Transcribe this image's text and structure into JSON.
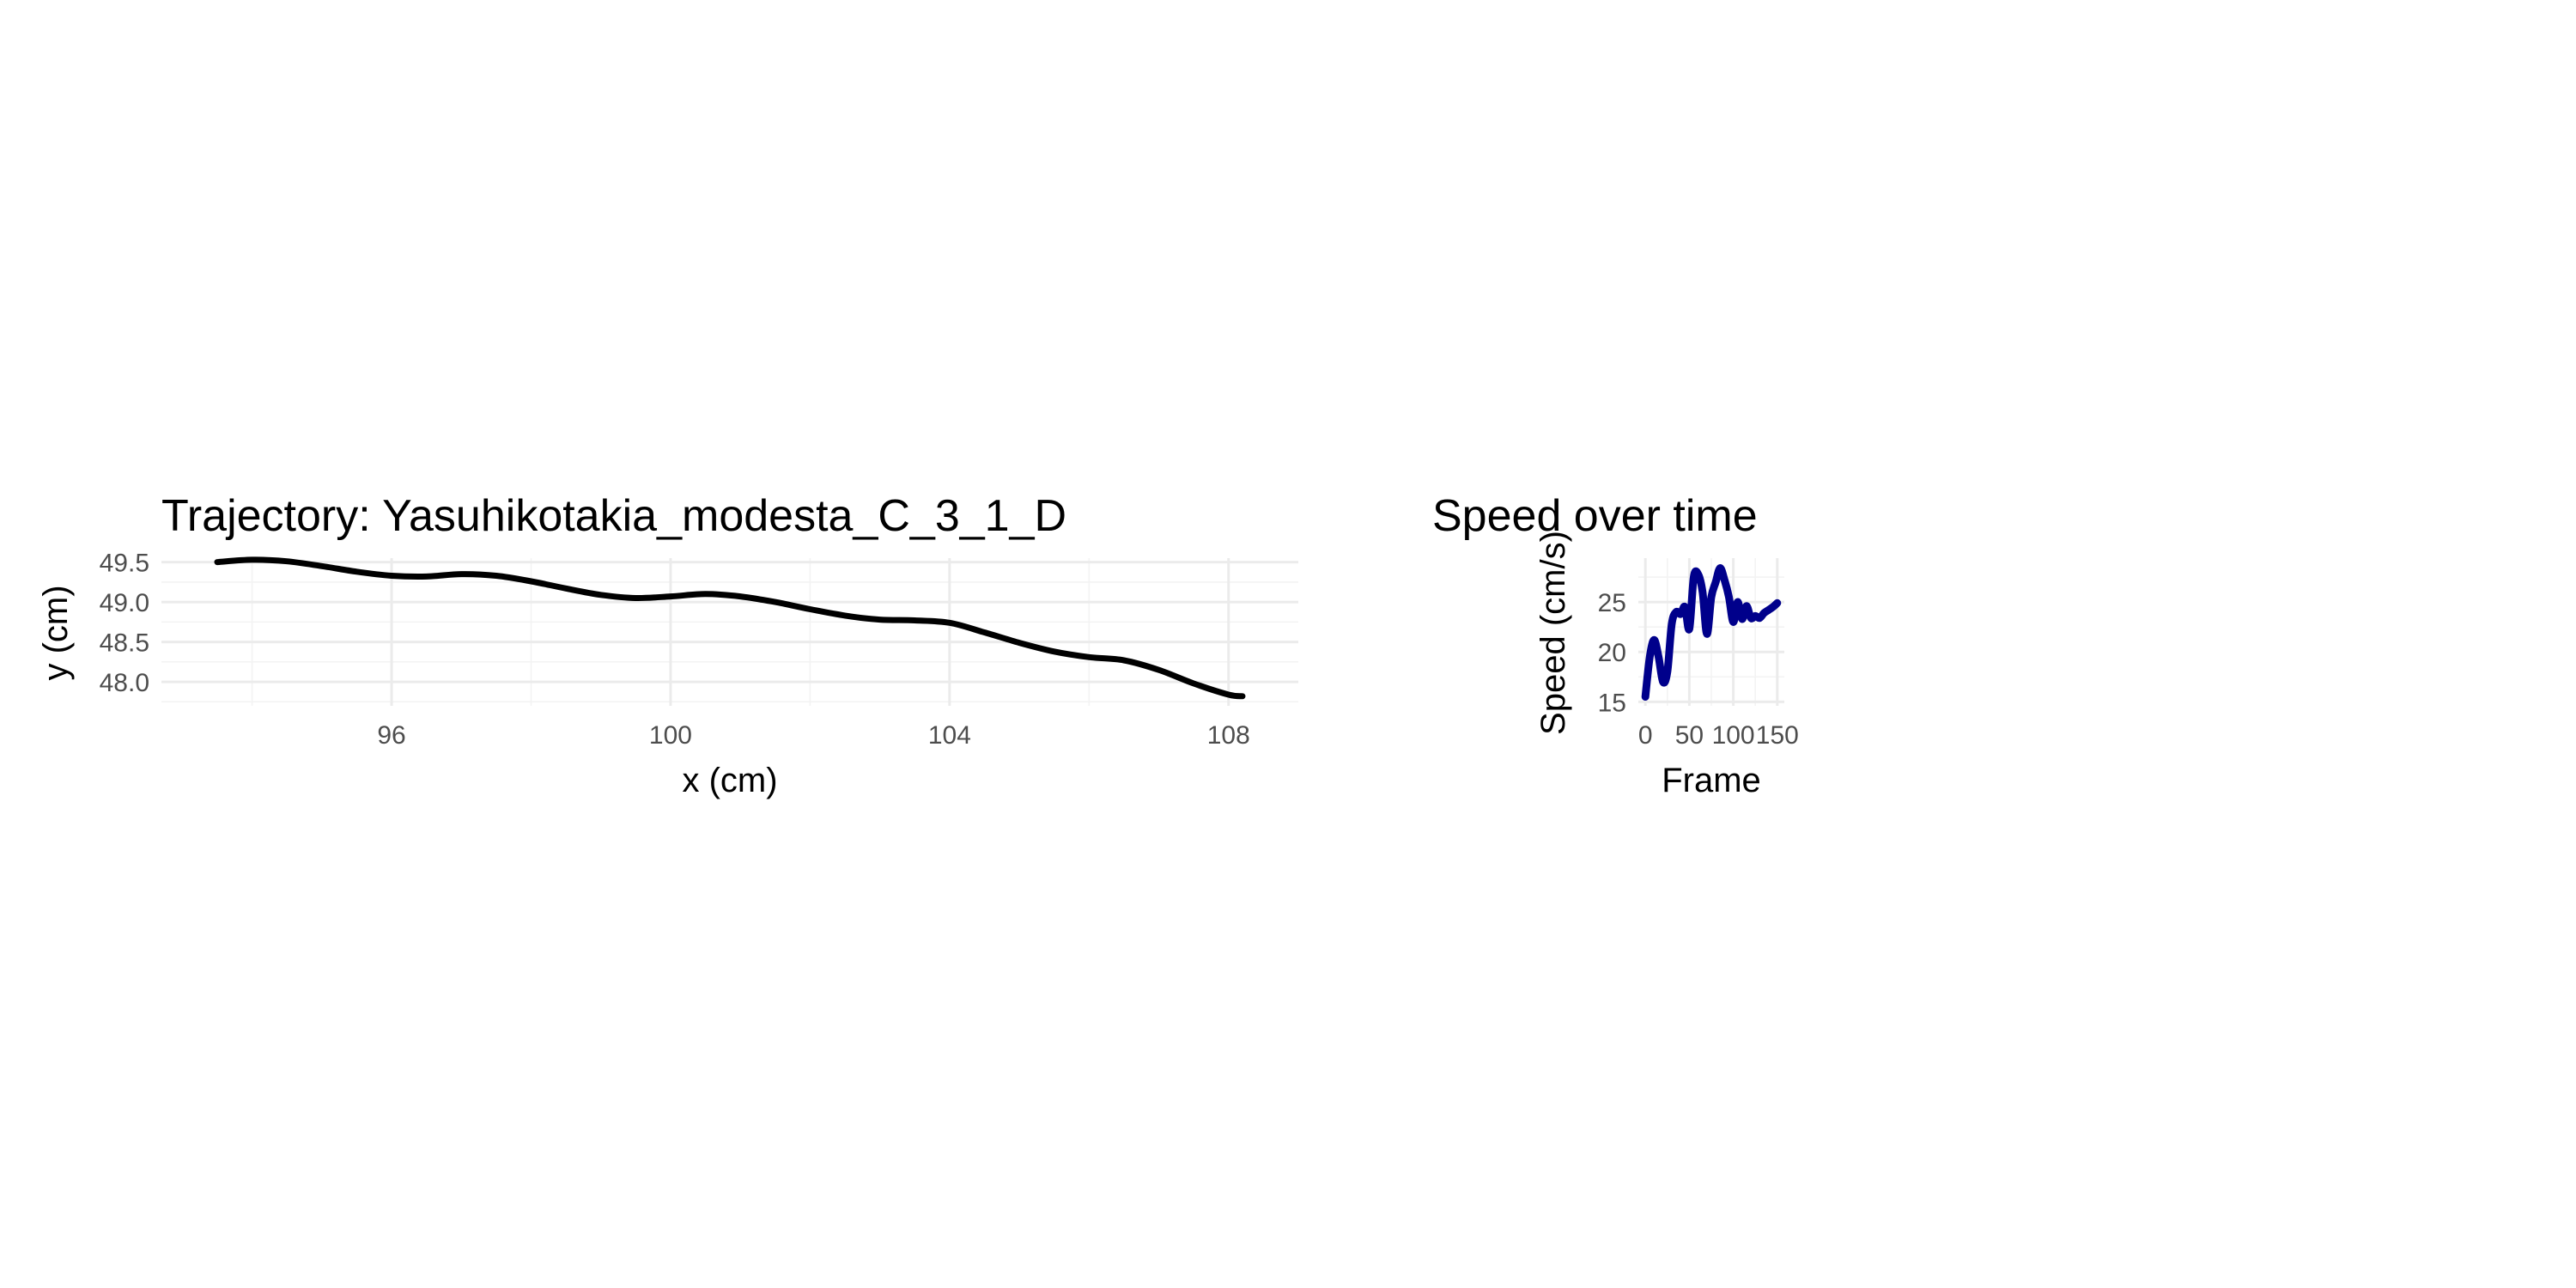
{
  "chart_data": [
    {
      "type": "line",
      "title": "Trajectory: Yasuhikotakia_modesta_C_3_1_D",
      "xlabel": "x (cm)",
      "ylabel": "y (cm)",
      "xlim": [
        92.7,
        109.0
      ],
      "ylim": [
        47.7,
        49.55
      ],
      "xticks": [
        96,
        100,
        104,
        108
      ],
      "xtick_labels": [
        "96",
        "100",
        "104",
        "108"
      ],
      "yticks": [
        48.0,
        48.5,
        49.0,
        49.5
      ],
      "ytick_labels": [
        "48.0",
        "48.5",
        "49.0",
        "49.5"
      ],
      "grid": true,
      "color": "#000000",
      "series": [
        {
          "x": [
            93.5,
            94.0,
            94.5,
            95.0,
            95.5,
            96.0,
            96.5,
            97.0,
            97.5,
            98.0,
            98.5,
            99.0,
            99.5,
            100.0,
            100.5,
            101.0,
            101.5,
            102.0,
            102.5,
            103.0,
            103.5,
            104.0,
            104.5,
            105.0,
            105.5,
            106.0,
            106.5,
            107.0,
            107.5,
            108.0,
            108.2
          ],
          "y": [
            49.5,
            49.53,
            49.51,
            49.45,
            49.38,
            49.33,
            49.32,
            49.35,
            49.33,
            49.26,
            49.17,
            49.09,
            49.05,
            49.07,
            49.1,
            49.07,
            49.0,
            48.91,
            48.83,
            48.78,
            48.77,
            48.74,
            48.62,
            48.49,
            48.38,
            48.31,
            48.27,
            48.15,
            47.98,
            47.84,
            47.82
          ]
        }
      ]
    },
    {
      "type": "line",
      "title": "Speed over time",
      "xlabel": "Frame",
      "ylabel": "Speed (cm/s)",
      "xlim": [
        -8,
        158
      ],
      "ylim": [
        14.6,
        29.4
      ],
      "xticks": [
        0,
        50,
        100,
        150
      ],
      "xtick_labels": [
        "0",
        "50",
        "100",
        "150"
      ],
      "yticks": [
        15,
        20,
        25
      ],
      "ytick_labels": [
        "15",
        "20",
        "25"
      ],
      "grid": true,
      "color": "#00008B",
      "series": [
        {
          "x": [
            0,
            5,
            10,
            15,
            20,
            25,
            30,
            35,
            40,
            45,
            50,
            55,
            60,
            65,
            70,
            75,
            80,
            85,
            90,
            95,
            100,
            105,
            110,
            115,
            120,
            125,
            130,
            135,
            140,
            145,
            150
          ],
          "y": [
            15.5,
            19.5,
            21.2,
            19.5,
            17.0,
            18.0,
            22.8,
            24.0,
            23.8,
            24.5,
            22.3,
            27.5,
            27.8,
            26.0,
            21.8,
            25.5,
            27.0,
            28.4,
            27.2,
            25.5,
            23.0,
            25.0,
            23.3,
            24.6,
            23.4,
            23.6,
            23.4,
            23.9,
            24.2,
            24.5,
            24.9
          ]
        }
      ]
    }
  ]
}
